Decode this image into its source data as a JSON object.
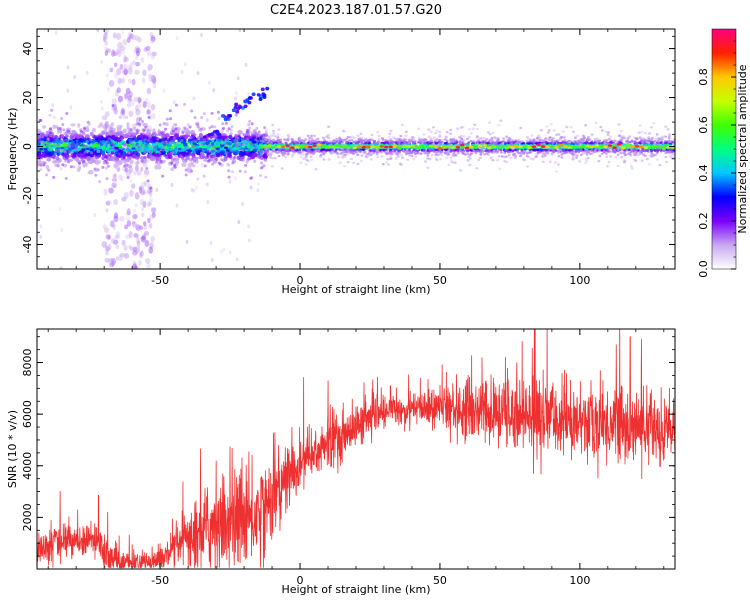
{
  "title": "C2E4.2023.187.01.57.G20",
  "chart_data": [
    {
      "type": "heatmap",
      "name": "spectrogram",
      "xlabel": "Height of straight line (km)",
      "ylabel": "Frequency (Hz)",
      "xlim": [
        -94,
        134
      ],
      "ylim": [
        -50,
        48
      ],
      "xticks": [
        -50,
        0,
        50,
        100
      ],
      "yticks": [
        -40,
        -20,
        0,
        20,
        40
      ],
      "colorbar": {
        "label": "Normalized spectral amplitude",
        "range": [
          0.0,
          1.0
        ],
        "ticks": [
          0.0,
          0.2,
          0.4,
          0.6,
          0.8
        ],
        "tick_labels": [
          "0.0",
          "0.2",
          "0.4",
          "0.6",
          "0.8"
        ],
        "colormap": [
          "#ffffff",
          "#c8a8f0",
          "#7a00ff",
          "#0000ff",
          "#00c8ff",
          "#00ff80",
          "#40ff00",
          "#c8ff00",
          "#ffc800",
          "#ff2000",
          "#ff0080"
        ]
      },
      "main_band": {
        "frequency_hz": 0,
        "x_range": [
          -94,
          134
        ]
      },
      "broad_noise": {
        "x_range": [
          -94,
          -12
        ],
        "frequency_span_hz": [
          -8,
          8
        ]
      },
      "vertical_streak": {
        "x_range": [
          -70,
          -52
        ],
        "frequency_span_hz": [
          -50,
          48
        ]
      },
      "rising_trace": [
        {
          "x": -30,
          "y": 5
        },
        {
          "x": -26,
          "y": 12
        },
        {
          "x": -22,
          "y": 16
        },
        {
          "x": -18,
          "y": 19
        },
        {
          "x": -14,
          "y": 21
        }
      ],
      "grid": false
    },
    {
      "type": "line",
      "name": "snr",
      "xlabel": "Height of straight line (km)",
      "ylabel": "SNR (10 * v/v)",
      "xlim": [
        -94,
        134
      ],
      "ylim": [
        0,
        9300
      ],
      "xticks": [
        -50,
        0,
        50,
        100
      ],
      "yticks": [
        2000,
        4000,
        6000,
        8000
      ],
      "color": "#ee3030",
      "envelope": {
        "x": [
          -94,
          -85,
          -75,
          -68,
          -62,
          -55,
          -48,
          -42,
          -35,
          -28,
          -22,
          -16,
          -10,
          -4,
          2,
          8,
          14,
          20,
          26,
          32,
          40,
          50,
          60,
          70,
          80,
          90,
          100,
          110,
          120,
          134
        ],
        "y": [
          700,
          1100,
          1200,
          400,
          200,
          250,
          450,
          1000,
          1500,
          1800,
          1900,
          2000,
          2800,
          3600,
          4200,
          4700,
          5100,
          5500,
          5900,
          6100,
          6200,
          6250,
          6200,
          6000,
          6000,
          5800,
          5700,
          5600,
          5500,
          5400
        ]
      },
      "noise_amplitude": {
        "x": [
          -94,
          -70,
          -55,
          -45,
          -30,
          -15,
          0,
          20,
          40,
          60,
          90,
          134
        ],
        "y": [
          500,
          500,
          250,
          500,
          1300,
          1400,
          900,
          600,
          400,
          900,
          1100,
          1000
        ]
      },
      "peaks": [
        {
          "x": -72,
          "y": 2850
        },
        {
          "x": -30,
          "y": 4200
        },
        {
          "x": -14,
          "y": 3550
        },
        {
          "x": -9,
          "y": 5300
        },
        {
          "x": 10,
          "y": 7300
        },
        {
          "x": 43,
          "y": 7400
        },
        {
          "x": 65,
          "y": 8200
        },
        {
          "x": 84,
          "y": 9300
        },
        {
          "x": 113,
          "y": 8700
        },
        {
          "x": 118,
          "y": 9000
        }
      ],
      "grid": false
    }
  ]
}
